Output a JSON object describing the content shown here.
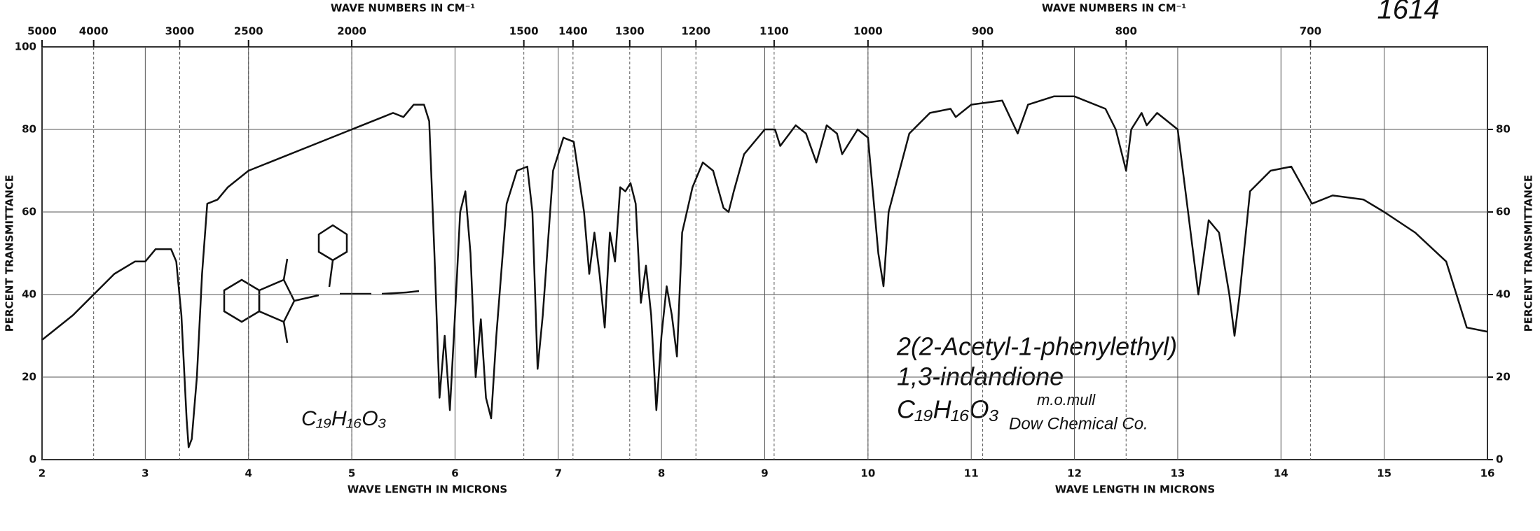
{
  "chart_data": {
    "type": "line",
    "catalog_number": "1614",
    "xlabel": "WAVE LENGTH IN MICRONS",
    "x2label": "WAVE NUMBERS IN CM⁻¹",
    "ylabel": "PERCENT TRANSMITTANCE",
    "xlim": [
      2,
      16
    ],
    "xticks": [
      2,
      3,
      4,
      5,
      6,
      7,
      8,
      9,
      10,
      11,
      12,
      13,
      14,
      15,
      16
    ],
    "x2scale": "reciprocal",
    "x2ticks": [
      5000,
      4000,
      3000,
      2500,
      2000,
      1500,
      1400,
      1300,
      1200,
      1100,
      1000,
      900,
      800,
      700
    ],
    "ylim": [
      0,
      100
    ],
    "yticks": [
      0,
      20,
      40,
      60,
      80,
      100
    ],
    "y2lim": [
      0,
      100
    ],
    "y2ticks": [
      0,
      20,
      40,
      60,
      80
    ],
    "grid": true,
    "color": "#111111",
    "x": [
      2.0,
      2.1,
      2.3,
      2.5,
      2.7,
      2.9,
      3.0,
      3.1,
      3.25,
      3.3,
      3.35,
      3.4,
      3.42,
      3.45,
      3.5,
      3.55,
      3.6,
      3.7,
      3.8,
      4.0,
      4.3,
      4.6,
      5.0,
      5.3,
      5.4,
      5.5,
      5.6,
      5.7,
      5.75,
      5.8,
      5.85,
      5.9,
      5.95,
      6.0,
      6.05,
      6.1,
      6.15,
      6.2,
      6.25,
      6.3,
      6.35,
      6.4,
      6.5,
      6.6,
      6.7,
      6.75,
      6.8,
      6.85,
      6.95,
      7.05,
      7.15,
      7.25,
      7.3,
      7.35,
      7.4,
      7.45,
      7.5,
      7.55,
      7.6,
      7.65,
      7.7,
      7.75,
      7.8,
      7.85,
      7.9,
      7.95,
      8.0,
      8.05,
      8.1,
      8.15,
      8.2,
      8.3,
      8.4,
      8.5,
      8.6,
      8.65,
      8.7,
      8.8,
      9.0,
      9.1,
      9.15,
      9.3,
      9.4,
      9.5,
      9.6,
      9.7,
      9.75,
      9.9,
      10.0,
      10.1,
      10.15,
      10.2,
      10.4,
      10.6,
      10.8,
      10.85,
      11.0,
      11.3,
      11.45,
      11.55,
      11.8,
      12.0,
      12.3,
      12.4,
      12.5,
      12.55,
      12.65,
      12.7,
      12.8,
      13.0,
      13.1,
      13.2,
      13.3,
      13.4,
      13.5,
      13.55,
      13.6,
      13.7,
      13.9,
      14.1,
      14.3,
      14.5,
      14.8,
      15.0,
      15.3,
      15.6,
      15.8,
      16.0
    ],
    "values": [
      29,
      31,
      35,
      40,
      45,
      48,
      48,
      51,
      51,
      48,
      35,
      10,
      3,
      5,
      20,
      45,
      62,
      63,
      66,
      70,
      73,
      76,
      80,
      83,
      84,
      83,
      86,
      86,
      82,
      50,
      15,
      30,
      12,
      35,
      60,
      65,
      50,
      20,
      34,
      15,
      10,
      30,
      62,
      70,
      71,
      60,
      22,
      35,
      70,
      78,
      77,
      60,
      45,
      55,
      45,
      32,
      55,
      48,
      66,
      65,
      67,
      62,
      38,
      47,
      35,
      12,
      30,
      42,
      35,
      25,
      55,
      66,
      72,
      70,
      61,
      60,
      65,
      74,
      80,
      80,
      76,
      81,
      79,
      72,
      81,
      79,
      74,
      80,
      78,
      50,
      42,
      60,
      79,
      84,
      85,
      83,
      86,
      87,
      79,
      86,
      88,
      88,
      85,
      80,
      70,
      80,
      84,
      81,
      84,
      80,
      60,
      40,
      58,
      55,
      40,
      30,
      40,
      65,
      70,
      71,
      62,
      64,
      63,
      60,
      55,
      48,
      32,
      31
    ],
    "annotations": [
      "2(2-Acetyl-1-phenylethyl)",
      "1,3-indandione",
      "C₁₉H₁₆O₃",
      "m.o.mull",
      "Dow Chemical Co."
    ],
    "sketch_formula": "C₁₉H₁₆O₃"
  }
}
